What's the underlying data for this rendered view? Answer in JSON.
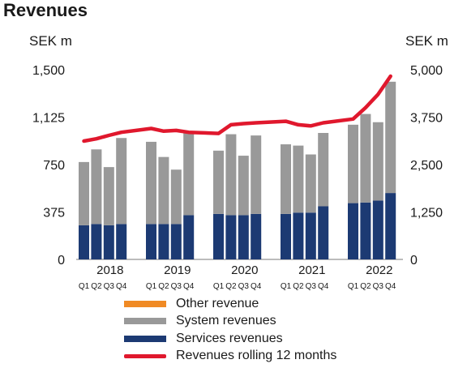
{
  "title": "Revenues",
  "chart_data": {
    "type": "bar",
    "title": "Revenues",
    "left_axis": {
      "unit": "SEK m",
      "ticks": [
        "1,500",
        "1,125",
        "750",
        "375",
        "0"
      ],
      "range": [
        0,
        1500
      ]
    },
    "right_axis": {
      "unit": "SEK m",
      "ticks": [
        "5,000",
        "3,750",
        "2,500",
        "1,250",
        "0"
      ],
      "range": [
        0,
        5000
      ]
    },
    "years": [
      "2018",
      "2019",
      "2020",
      "2021",
      "2022"
    ],
    "quarter_labels": [
      "Q1",
      "Q2",
      "Q3",
      "Q4"
    ],
    "categories": [
      "2018 Q1",
      "2018 Q2",
      "2018 Q3",
      "2018 Q4",
      "2019 Q1",
      "2019 Q2",
      "2019 Q3",
      "2019 Q4",
      "2020 Q1",
      "2020 Q2",
      "2020 Q3",
      "2020 Q4",
      "2021 Q1",
      "2021 Q2",
      "2021 Q3",
      "2021 Q4",
      "2022 Q1",
      "2022 Q2",
      "2022 Q3",
      "2022 Q4"
    ],
    "series": [
      {
        "name": "Other revenue",
        "color": "#f08a24",
        "axis": "left",
        "values": [
          0,
          0,
          0,
          0,
          0,
          0,
          0,
          0,
          0,
          0,
          0,
          0,
          0,
          0,
          0,
          0,
          0,
          0,
          0,
          0
        ]
      },
      {
        "name": "System revenues",
        "color": "#999999",
        "axis": "left",
        "values": [
          500,
          590,
          460,
          680,
          650,
          530,
          430,
          650,
          500,
          640,
          470,
          620,
          550,
          530,
          460,
          580,
          620,
          700,
          620,
          880
        ]
      },
      {
        "name": "Services revenues",
        "color": "#1c3a73",
        "axis": "left",
        "values": [
          270,
          280,
          270,
          280,
          280,
          280,
          280,
          350,
          360,
          350,
          350,
          360,
          360,
          370,
          370,
          420,
          445,
          450,
          465,
          525
        ]
      },
      {
        "name": "Revenues rolling 12 months",
        "color": "#e0182d",
        "axis": "right",
        "type": "line",
        "values": [
          3120,
          3180,
          3270,
          3350,
          3450,
          3380,
          3400,
          3350,
          3320,
          3550,
          3580,
          3600,
          3640,
          3550,
          3520,
          3600,
          3700,
          4000,
          4350,
          4830
        ]
      }
    ],
    "legend_position": "bottom",
    "grid": false
  }
}
